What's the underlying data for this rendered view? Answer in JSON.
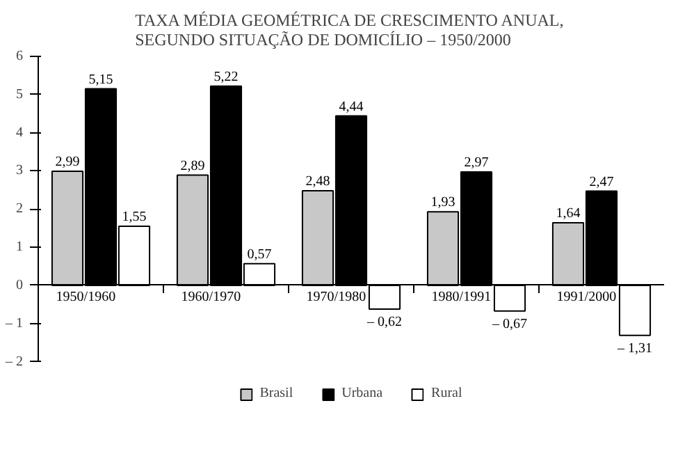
{
  "chart_data": {
    "type": "bar",
    "title": "TAXA MÉDIA GEOMÉTRICA DE CRESCIMENTO ANUAL,\nSEGUNDO SITUAÇÃO DE DOMICÍLIO – 1950/2000",
    "categories": [
      "1950/1960",
      "1960/1970",
      "1970/1980",
      "1980/1991",
      "1991/2000"
    ],
    "series": [
      {
        "name": "Brasil",
        "color": "#c8c8c8",
        "values": [
          2.99,
          2.89,
          2.48,
          1.93,
          1.64
        ],
        "value_labels": [
          "2,99",
          "2,89",
          "2,48",
          "1,93",
          "1,64"
        ]
      },
      {
        "name": "Urbana",
        "color": "#000000",
        "values": [
          5.15,
          5.22,
          4.44,
          2.97,
          2.47
        ],
        "value_labels": [
          "5,15",
          "5,22",
          "4,44",
          "2,97",
          "2,47"
        ]
      },
      {
        "name": "Rural",
        "color": "#ffffff",
        "values": [
          1.55,
          0.57,
          -0.62,
          -0.67,
          -1.31
        ],
        "value_labels": [
          "1,55",
          "0,57",
          "– 0,62",
          "– 0,67",
          "– 1,31"
        ]
      }
    ],
    "ylim": [
      -2,
      6
    ],
    "yticks": [
      {
        "value": -2,
        "label": "– 2"
      },
      {
        "value": -1,
        "label": "– 1"
      },
      0,
      1,
      2,
      3,
      4,
      5,
      6
    ],
    "grid": false,
    "legend": "bottom"
  }
}
